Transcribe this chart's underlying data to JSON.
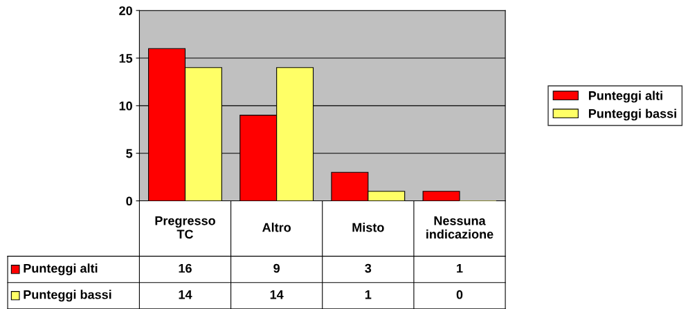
{
  "chart_data": {
    "type": "bar",
    "categories": [
      "Pregresso\nTC",
      "Altro",
      "Misto",
      "Nessuna\nindicazione"
    ],
    "series": [
      {
        "name": "Punteggi alti",
        "color": "#ff0000",
        "values": [
          16,
          9,
          3,
          1
        ]
      },
      {
        "name": "Punteggi bassi",
        "color": "#ffff66",
        "values": [
          14,
          14,
          1,
          0
        ]
      }
    ],
    "ylim": [
      0,
      20
    ],
    "yticks": [
      0,
      5,
      10,
      15,
      20
    ],
    "grid": "y",
    "legend": "right",
    "data_labels": true
  }
}
